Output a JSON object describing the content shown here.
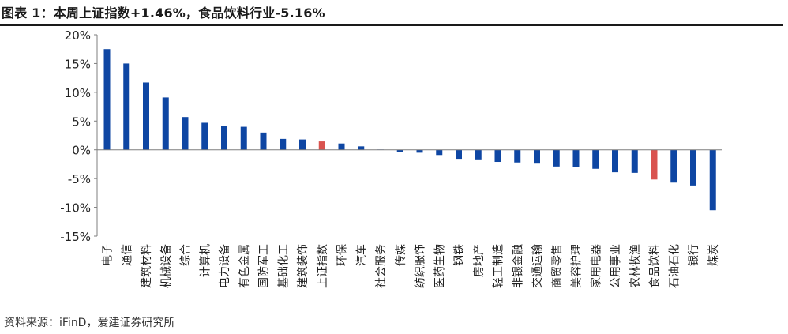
{
  "header": {
    "title": "图表 1：本周上证指数+1.46%，食品饮料行业-5.16%"
  },
  "footer": {
    "source": "资料来源：iFinD，爱建证券研究所"
  },
  "colors": {
    "default_bar": "#0e46a3",
    "highlight_bar": "#d9534f",
    "axis": "#7f7f7f",
    "text": "#222222"
  },
  "chart_data": {
    "type": "bar",
    "title": "本周上证指数+1.46%，食品饮料行业-5.16%",
    "xlabel": "",
    "ylabel": "",
    "ylim": [
      -15,
      20
    ],
    "y_ticks": [
      "20%",
      "15%",
      "10%",
      "5%",
      "0%",
      "-5%",
      "-10%",
      "-15%"
    ],
    "y_tick_values": [
      20,
      15,
      10,
      5,
      0,
      -5,
      -10,
      -15
    ],
    "grid": false,
    "legend": "none",
    "unit": "%",
    "categories": [
      "电子",
      "通信",
      "建筑材料",
      "机械设备",
      "综合",
      "计算机",
      "电力设备",
      "有色金属",
      "国防军工",
      "基础化工",
      "建筑装饰",
      "上证指数",
      "环保",
      "汽车",
      "社会服务",
      "传媒",
      "纺织服饰",
      "医药生物",
      "钢铁",
      "房地产",
      "轻工制造",
      "非银金融",
      "交通运输",
      "商贸零售",
      "美容护理",
      "家用电器",
      "公用事业",
      "农林牧渔",
      "食品饮料",
      "石油石化",
      "银行",
      "煤炭"
    ],
    "values": [
      17.5,
      15.0,
      11.7,
      9.1,
      5.7,
      4.7,
      4.1,
      4.0,
      3.0,
      1.9,
      1.8,
      1.46,
      1.1,
      0.6,
      0.05,
      -0.4,
      -0.5,
      -0.9,
      -1.7,
      -1.8,
      -2.1,
      -2.2,
      -2.4,
      -2.9,
      -3.0,
      -3.3,
      -3.9,
      -4.0,
      -5.16,
      -5.7,
      -6.2,
      -10.5
    ],
    "highlight": [
      "上证指数",
      "食品饮料"
    ]
  }
}
